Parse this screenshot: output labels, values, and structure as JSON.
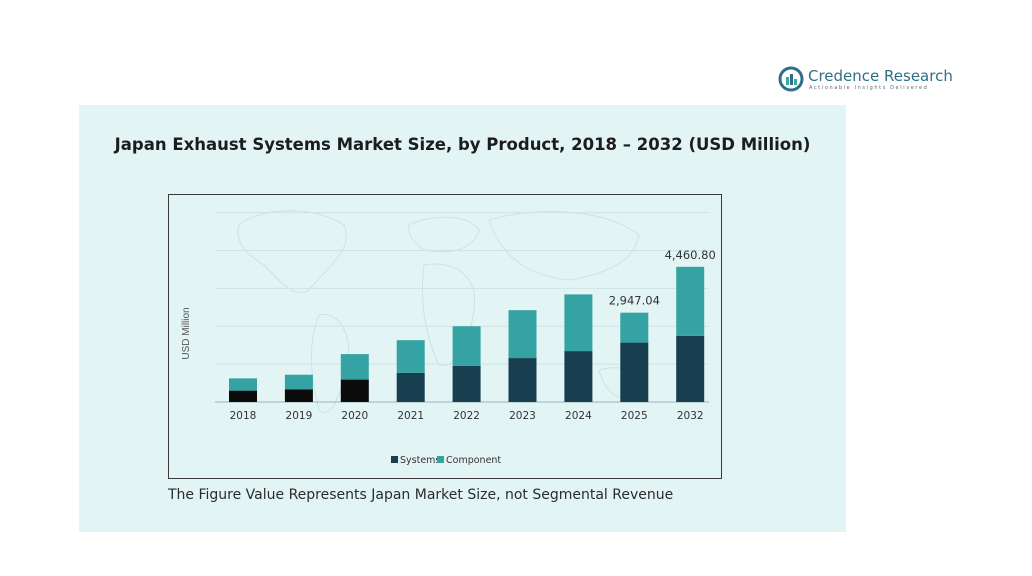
{
  "brand": {
    "name": "Credence Research",
    "tagline": "Actionable Insights Delivered",
    "colors": {
      "primary": "#2e6f86",
      "accent": "#3aa8a4"
    }
  },
  "panel": {
    "background": "#e3f4f4",
    "footnote": "The Figure Value Represents Japan Market Size, not Segmental Revenue"
  },
  "chart_data": {
    "type": "bar",
    "stacked": true,
    "title": "Japan Exhaust Systems Market Size, by Product, 2018 – 2032 (USD Million)",
    "xlabel": "",
    "ylabel": "USD Million",
    "categories": [
      "2018",
      "2019",
      "2020",
      "2021",
      "2022",
      "2023",
      "2024",
      "2025",
      "2032"
    ],
    "series": [
      {
        "name": "Systems",
        "color": "#173f4f",
        "values": [
          375,
          420,
          740,
          960,
          1190,
          1450,
          1680,
          1960,
          2180
        ]
      },
      {
        "name": "Component",
        "color": "#35a3a3",
        "values": [
          405,
          480,
          840,
          1080,
          1310,
          1580,
          1870,
          987.04,
          2280.8
        ]
      }
    ],
    "early_systems_color": "#0b0b0b",
    "data_labels": [
      {
        "category": "2025",
        "text": "2,947.04"
      },
      {
        "category": "2032",
        "text": "4,460.80"
      }
    ],
    "ylim": [
      0,
      6500
    ],
    "grid": true,
    "legend_position": "bottom"
  }
}
